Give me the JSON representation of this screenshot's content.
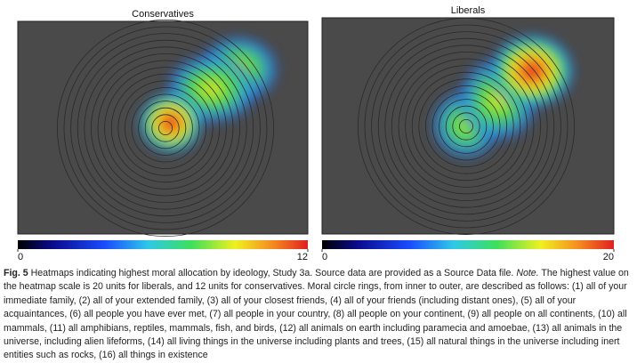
{
  "chart_data": [
    {
      "type": "heatmap",
      "title": "Conservatives",
      "zlim": [
        0,
        12
      ],
      "zticks": [
        0,
        12
      ]
    },
    {
      "type": "heatmap",
      "title": "Liberals",
      "zlim": [
        0,
        20
      ],
      "zticks": [
        0,
        20
      ]
    }
  ],
  "caption": {
    "label": "Fig. 5",
    "text": " Heatmaps indicating highest moral allocation by ideology, Study 3a. Source data are provided as a Source Data file. ",
    "note_label": "Note.",
    "note_text": " The highest value on the heatmap scale is 20 units for liberals, and 12 units for conservatives. Moral circle rings, from inner to outer, are described as follows: (1) all of your immediate family, (2) all of your extended family, (3) all of your closest friends, (4) all of your friends (including distant ones), (5) all of your acquaintances, (6) all people you have ever met, (7) all people in your country, (8) all people on your continent, (9) all people on all continents, (10) all mammals, (11) all amphibians, reptiles, mammals, fish, and birds, (12) all animals on earth including paramecia and amoebae, (13) all animals in the universe, including alien lifeforms, (14) all living things in the universe including plants and trees, (15) all natural things in the universe including inert entities such as rocks, (16) all things in existence"
  }
}
